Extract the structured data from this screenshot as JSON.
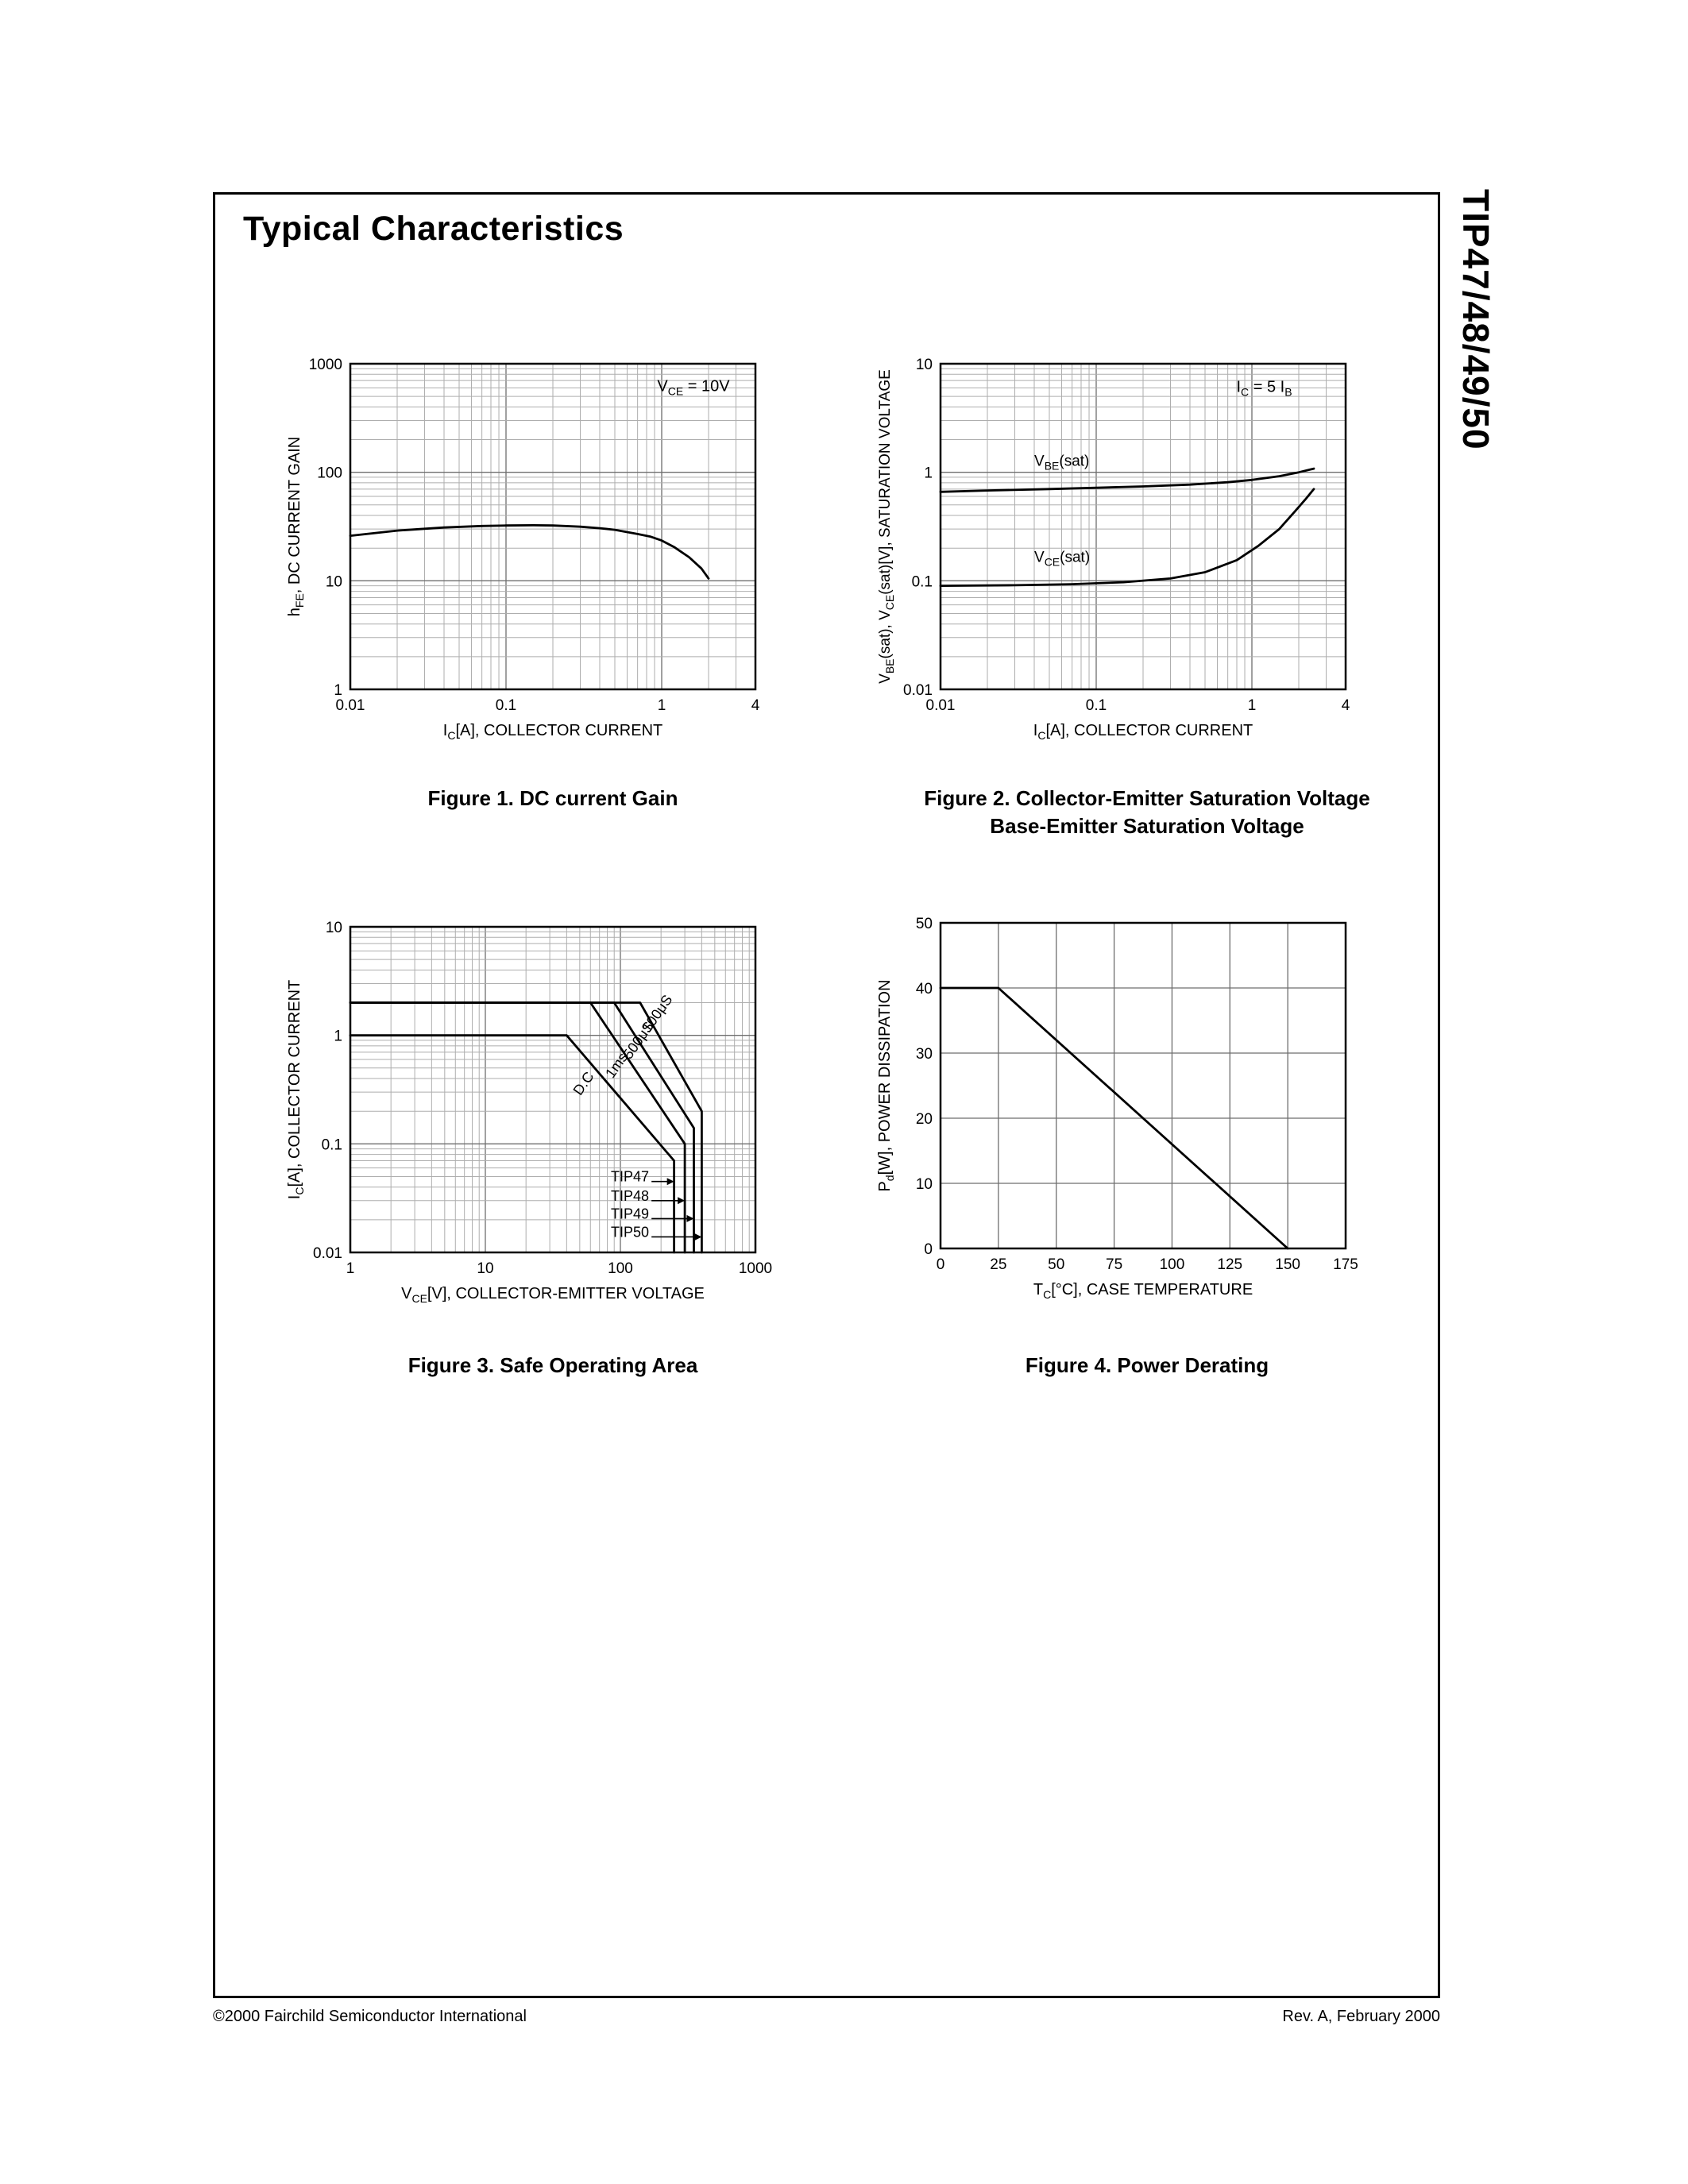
{
  "page": {
    "header_title": "Typical Characteristics",
    "side_title": "TIP47/48/49/50",
    "footer_left": "©2000 Fairchild Semiconductor International",
    "footer_right": "Rev. A, February 2000"
  },
  "chart_data": [
    {
      "id": "fig1",
      "type": "line",
      "caption": [
        "Figure 1. DC current Gain"
      ],
      "xscale": "log",
      "yscale": "log",
      "xlim": [
        0.01,
        4
      ],
      "ylim": [
        1,
        1000
      ],
      "xticks": [
        [
          0.01,
          "0.01"
        ],
        [
          0.1,
          "0.1"
        ],
        [
          1,
          "1"
        ],
        [
          4,
          "4"
        ]
      ],
      "yticks": [
        [
          1,
          "1"
        ],
        [
          10,
          "10"
        ],
        [
          100,
          "100"
        ],
        [
          1000,
          "1000"
        ]
      ],
      "xlabel": "I~C~[A], COLLECTOR CURRENT",
      "ylabel": "h~FE~, DC CURRENT GAIN",
      "grid": "log-minor",
      "series": [
        {
          "name": "hFE",
          "points": [
            [
              0.01,
              26
            ],
            [
              0.02,
              29
            ],
            [
              0.04,
              31
            ],
            [
              0.07,
              32
            ],
            [
              0.1,
              32.3
            ],
            [
              0.15,
              32.5
            ],
            [
              0.2,
              32.3
            ],
            [
              0.3,
              31.5
            ],
            [
              0.4,
              30.5
            ],
            [
              0.5,
              29.5
            ],
            [
              0.7,
              27
            ],
            [
              0.85,
              25.5
            ],
            [
              1,
              23.5
            ],
            [
              1.2,
              20.5
            ],
            [
              1.5,
              16.5
            ],
            [
              1.8,
              13
            ],
            [
              2,
              10.5
            ]
          ]
        }
      ],
      "texts": [
        {
          "x": 1.6,
          "y": 560,
          "text": "V~CE~ = 10V",
          "anchor": "middle",
          "size": 20
        }
      ]
    },
    {
      "id": "fig2",
      "type": "line",
      "caption": [
        "Figure 2. Collector-Emitter Saturation Voltage",
        "Base-Emitter Saturation Voltage"
      ],
      "xscale": "log",
      "yscale": "log",
      "xlim": [
        0.01,
        4
      ],
      "ylim": [
        0.01,
        10
      ],
      "xticks": [
        [
          0.01,
          "0.01"
        ],
        [
          0.1,
          "0.1"
        ],
        [
          1,
          "1"
        ],
        [
          4,
          "4"
        ]
      ],
      "yticks": [
        [
          0.01,
          "0.01"
        ],
        [
          0.1,
          "0.1"
        ],
        [
          1,
          "1"
        ],
        [
          10,
          "10"
        ]
      ],
      "xlabel": "I~C~[A], COLLECTOR CURRENT",
      "ylabel": "V~BE~(sat), V~CE~(sat)[V], SATURATION VOLTAGE",
      "ylabel_size": 19,
      "grid": "log-minor",
      "series": [
        {
          "name": "VBE(sat)",
          "points": [
            [
              0.01,
              0.66
            ],
            [
              0.02,
              0.68
            ],
            [
              0.05,
              0.7
            ],
            [
              0.1,
              0.72
            ],
            [
              0.2,
              0.74
            ],
            [
              0.4,
              0.77
            ],
            [
              0.7,
              0.81
            ],
            [
              1,
              0.85
            ],
            [
              1.5,
              0.92
            ],
            [
              2,
              1.0
            ],
            [
              2.5,
              1.08
            ]
          ]
        },
        {
          "name": "VCE(sat)",
          "points": [
            [
              0.01,
              0.09
            ],
            [
              0.03,
              0.091
            ],
            [
              0.07,
              0.093
            ],
            [
              0.15,
              0.097
            ],
            [
              0.3,
              0.105
            ],
            [
              0.5,
              0.12
            ],
            [
              0.8,
              0.155
            ],
            [
              1.1,
              0.21
            ],
            [
              1.5,
              0.3
            ],
            [
              1.9,
              0.44
            ],
            [
              2.2,
              0.56
            ],
            [
              2.5,
              0.7
            ]
          ]
        }
      ],
      "texts": [
        {
          "x": 1.2,
          "y": 5.5,
          "text": "I~C~ = 5 I~B~",
          "anchor": "middle",
          "size": 20
        },
        {
          "x": 0.04,
          "y": 1.15,
          "text": "V~BE~(sat)",
          "anchor": "start",
          "size": 19
        },
        {
          "x": 0.04,
          "y": 0.15,
          "text": "V~CE~(sat)",
          "anchor": "start",
          "size": 19
        }
      ]
    },
    {
      "id": "fig3",
      "type": "line",
      "caption": [
        "Figure 3. Safe Operating Area"
      ],
      "xscale": "log",
      "yscale": "log",
      "xlim": [
        1,
        1000
      ],
      "ylim": [
        0.01,
        10
      ],
      "xticks": [
        [
          1,
          "1"
        ],
        [
          10,
          "10"
        ],
        [
          100,
          "100"
        ],
        [
          1000,
          "1000"
        ]
      ],
      "yticks": [
        [
          0.01,
          "0.01"
        ],
        [
          0.1,
          "0.1"
        ],
        [
          1,
          "1"
        ],
        [
          10,
          "10"
        ]
      ],
      "xlabel": "V~CE~[V], COLLECTOR-EMITTER VOLTAGE",
      "ylabel": "I~C~[A], COLLECTOR CURRENT",
      "grid": "log-minor",
      "series": [
        {
          "name": "100μS",
          "points": [
            [
              1,
              2
            ],
            [
              140,
              2
            ],
            [
              400,
              0.2
            ],
            [
              400,
              0.01
            ]
          ]
        },
        {
          "name": "500μS",
          "points": [
            [
              1,
              2
            ],
            [
              90,
              2
            ],
            [
              350,
              0.14
            ],
            [
              350,
              0.01
            ]
          ]
        },
        {
          "name": "1ms",
          "points": [
            [
              1,
              2
            ],
            [
              60,
              2
            ],
            [
              300,
              0.1
            ],
            [
              300,
              0.01
            ]
          ]
        },
        {
          "name": "D.C",
          "points": [
            [
              1,
              1
            ],
            [
              40,
              1
            ],
            [
              250,
              0.07
            ],
            [
              250,
              0.01
            ]
          ]
        }
      ],
      "texts": [
        {
          "x": 200,
          "y": 1.5,
          "text": "100μS",
          "anchor": "middle",
          "rotate": -55,
          "size": 18
        },
        {
          "x": 145,
          "y": 0.85,
          "text": "500μS",
          "anchor": "middle",
          "rotate": -55,
          "size": 18
        },
        {
          "x": 100,
          "y": 0.5,
          "text": "1ms",
          "anchor": "middle",
          "rotate": -55,
          "size": 18
        },
        {
          "x": 57,
          "y": 0.34,
          "text": "D.C",
          "anchor": "middle",
          "rotate": -55,
          "size": 18
        },
        {
          "x": 85,
          "y": 0.045,
          "text": "TIP47",
          "anchor": "start",
          "size": 18
        },
        {
          "x": 85,
          "y": 0.03,
          "text": "TIP48",
          "anchor": "start",
          "size": 18
        },
        {
          "x": 85,
          "y": 0.0205,
          "text": "TIP49",
          "anchor": "start",
          "size": 18
        },
        {
          "x": 85,
          "y": 0.0139,
          "text": "TIP50",
          "anchor": "start",
          "size": 18
        }
      ],
      "leaders": [
        {
          "x1": 170,
          "x2": 250,
          "y": 0.045
        },
        {
          "x1": 170,
          "x2": 300,
          "y": 0.03
        },
        {
          "x1": 170,
          "x2": 350,
          "y": 0.0205
        },
        {
          "x1": 170,
          "x2": 400,
          "y": 0.0139
        }
      ]
    },
    {
      "id": "fig4",
      "type": "line",
      "caption": [
        "Figure 4. Power Derating"
      ],
      "xscale": "linear",
      "yscale": "linear",
      "xlim": [
        0,
        175
      ],
      "ylim": [
        0,
        50
      ],
      "xticks": [
        [
          0,
          "0"
        ],
        [
          25,
          "25"
        ],
        [
          50,
          "50"
        ],
        [
          75,
          "75"
        ],
        [
          100,
          "100"
        ],
        [
          125,
          "125"
        ],
        [
          150,
          "150"
        ],
        [
          175,
          "175"
        ]
      ],
      "yticks": [
        [
          0,
          "0"
        ],
        [
          10,
          "10"
        ],
        [
          20,
          "20"
        ],
        [
          30,
          "30"
        ],
        [
          40,
          "40"
        ],
        [
          50,
          "50"
        ]
      ],
      "xlabel": "T~C~[°C], CASE TEMPERATURE",
      "ylabel": "P~d~[W], POWER DISSIPATION",
      "grid": "linear",
      "series": [
        {
          "name": "Pd derating",
          "points": [
            [
              0,
              40
            ],
            [
              25,
              40
            ],
            [
              150,
              0
            ]
          ]
        }
      ],
      "texts": []
    }
  ]
}
